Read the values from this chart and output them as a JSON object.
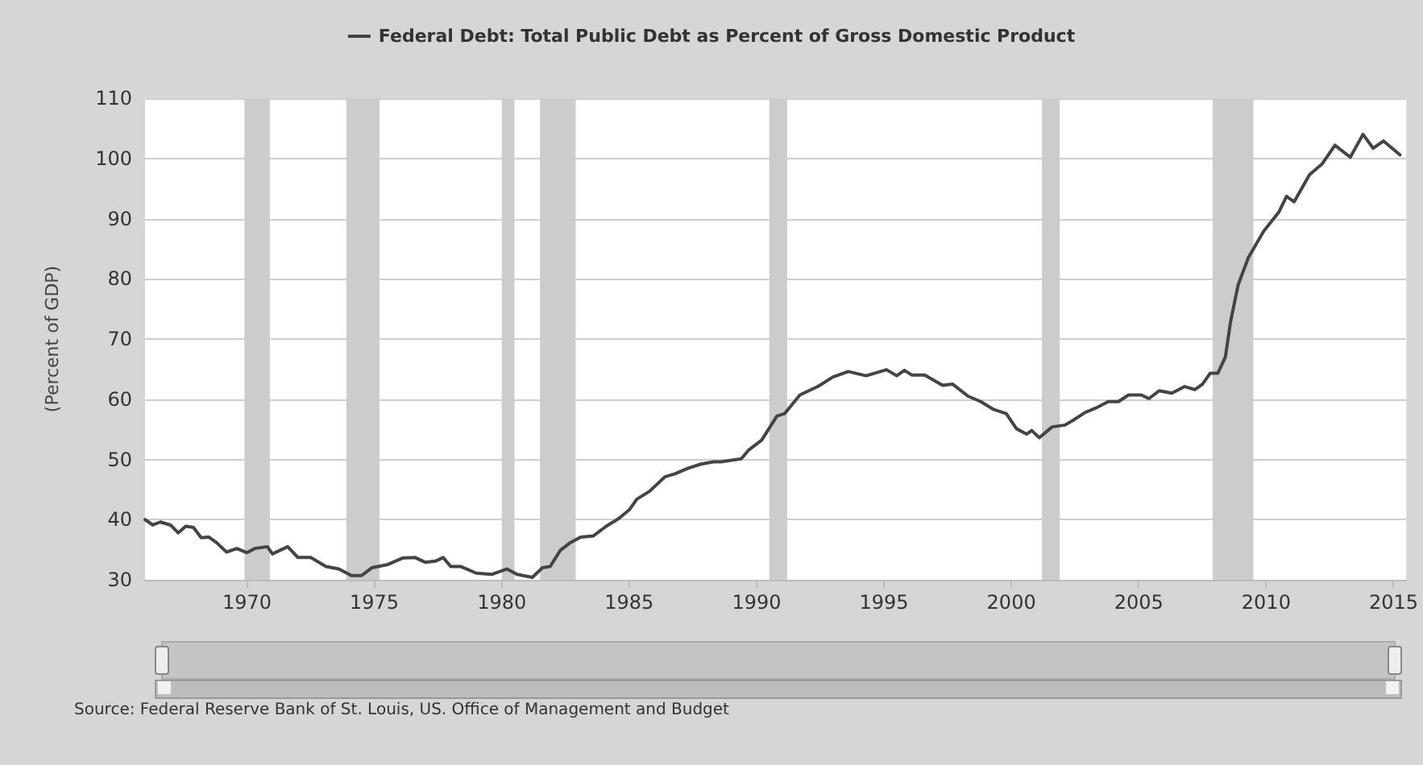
{
  "chart_data": {
    "type": "line",
    "ylabel": "(Percent of GDP)",
    "annotations": [
      "Source: Federal Reserve Bank of St. Louis, US. Office of Management and Budget"
    ],
    "x": [
      1966.0,
      1966.3,
      1966.6,
      1967.0,
      1967.3,
      1967.6,
      1967.9,
      1968.2,
      1968.5,
      1968.8,
      1969.2,
      1969.6,
      1970.0,
      1970.3,
      1970.8,
      1971.0,
      1971.3,
      1971.6,
      1972.0,
      1972.5,
      1973.1,
      1973.6,
      1974.1,
      1974.5,
      1974.9,
      1975.5,
      1976.1,
      1976.6,
      1977.0,
      1977.4,
      1977.7,
      1978.0,
      1978.4,
      1979.0,
      1979.6,
      1980.2,
      1980.6,
      1981.2,
      1981.6,
      1981.9,
      1982.3,
      1982.7,
      1983.1,
      1983.6,
      1984.1,
      1984.6,
      1985.0,
      1985.3,
      1985.8,
      1986.4,
      1986.8,
      1987.3,
      1987.8,
      1988.3,
      1988.6,
      1989.4,
      1989.7,
      1990.2,
      1990.8,
      1991.1,
      1991.7,
      1992.4,
      1993.0,
      1993.6,
      1994.3,
      1995.1,
      1995.5,
      1995.8,
      1996.1,
      1996.6,
      1997.3,
      1997.7,
      1998.3,
      1998.8,
      1999.3,
      1999.8,
      2000.2,
      2000.6,
      2000.8,
      2001.1,
      2001.6,
      2002.1,
      2002.5,
      2002.9,
      2003.3,
      2003.8,
      2004.2,
      2004.6,
      2005.1,
      2005.4,
      2005.8,
      2006.3,
      2006.8,
      2007.2,
      2007.5,
      2007.8,
      2008.1,
      2008.4,
      2008.6,
      2008.9,
      2009.3,
      2009.9,
      2010.5,
      2010.8,
      2011.1,
      2011.7,
      2012.2,
      2012.7,
      2013.3,
      2013.8,
      2014.2,
      2014.6,
      2015.25
    ],
    "series": [
      {
        "name": "Federal Debt: Total Public Debt as Percent of Gross Domestic Product",
        "color": "#444444",
        "values": [
          40.0,
          39.1,
          39.6,
          39.1,
          37.8,
          38.9,
          38.7,
          37.0,
          37.1,
          36.2,
          34.6,
          35.2,
          34.5,
          35.2,
          35.5,
          34.3,
          34.9,
          35.5,
          33.7,
          33.7,
          32.2,
          31.8,
          30.7,
          30.7,
          32.0,
          32.5,
          33.6,
          33.7,
          32.9,
          33.1,
          33.7,
          32.2,
          32.2,
          31.1,
          30.9,
          31.8,
          30.9,
          30.4,
          32.0,
          32.2,
          34.9,
          36.2,
          37.1,
          37.3,
          38.9,
          40.2,
          41.6,
          43.4,
          44.7,
          47.1,
          47.6,
          48.5,
          49.2,
          49.6,
          49.6,
          50.1,
          51.6,
          53.2,
          57.2,
          57.6,
          60.7,
          62.1,
          63.7,
          64.6,
          63.9,
          64.9,
          63.9,
          64.8,
          64.0,
          64.0,
          62.3,
          62.5,
          60.5,
          59.6,
          58.3,
          57.6,
          55.1,
          54.2,
          54.8,
          53.6,
          55.4,
          55.7,
          56.7,
          57.8,
          58.5,
          59.6,
          59.6,
          60.7,
          60.7,
          60.1,
          61.4,
          61.0,
          62.1,
          61.6,
          62.5,
          64.3,
          64.3,
          67.0,
          72.8,
          79.0,
          83.5,
          87.9,
          91.1,
          93.7,
          92.8,
          97.3,
          99.1,
          102.2,
          100.2,
          104.0,
          101.7,
          102.9,
          100.6
        ]
      }
    ],
    "xlim": [
      1966,
      2015.5
    ],
    "xticks": [
      1970,
      1975,
      1980,
      1985,
      1990,
      1995,
      2000,
      2005,
      2010,
      2015
    ],
    "ylim": [
      30,
      110
    ],
    "yticks": [
      30,
      40,
      50,
      60,
      70,
      80,
      90,
      100,
      110
    ],
    "bands": [
      {
        "axis": "x",
        "from": 1969.9,
        "to": 1970.9,
        "color": "#cccccc"
      },
      {
        "axis": "x",
        "from": 1973.9,
        "to": 1975.2,
        "color": "#cccccc"
      },
      {
        "axis": "x",
        "from": 1980.0,
        "to": 1980.5,
        "color": "#cccccc"
      },
      {
        "axis": "x",
        "from": 1981.5,
        "to": 1982.9,
        "color": "#cccccc"
      },
      {
        "axis": "x",
        "from": 1990.5,
        "to": 1991.2,
        "color": "#cccccc"
      },
      {
        "axis": "x",
        "from": 2001.2,
        "to": 2001.9,
        "color": "#cccccc"
      },
      {
        "axis": "x",
        "from": 2007.9,
        "to": 2009.5,
        "color": "#cccccc"
      }
    ],
    "grid": "y",
    "legend": "top",
    "marker": "none",
    "line_style": "solid"
  }
}
